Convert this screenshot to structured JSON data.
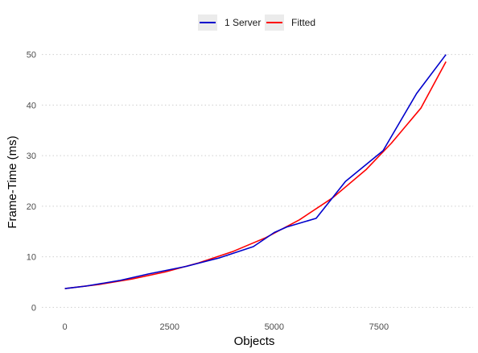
{
  "chart_data": {
    "type": "line",
    "title": "",
    "xlabel": "Objects",
    "ylabel": "Frame-Time (ms)",
    "xlim": [
      -550,
      9750
    ],
    "ylim": [
      -2.5,
      52.5
    ],
    "x_ticks": [
      0,
      2500,
      5000,
      7500
    ],
    "y_ticks": [
      0,
      10,
      20,
      30,
      40,
      50
    ],
    "grid": {
      "horizontal": true,
      "vertical": false,
      "style": "dotted"
    },
    "legend_position": "top",
    "series": [
      {
        "name": "1 Server",
        "color": "#0000CC",
        "points": [
          [
            0,
            3.7
          ],
          [
            500,
            4.2
          ],
          [
            1300,
            5.3
          ],
          [
            2000,
            6.6
          ],
          [
            2900,
            8.1
          ],
          [
            3700,
            9.8
          ],
          [
            4500,
            12.0
          ],
          [
            5000,
            14.8
          ],
          [
            5300,
            15.9
          ],
          [
            6000,
            17.6
          ],
          [
            6700,
            24.9
          ],
          [
            7600,
            31.0
          ],
          [
            8400,
            42.3
          ],
          [
            9100,
            50.0
          ]
        ]
      },
      {
        "name": "Fitted",
        "color": "#FF0000",
        "points": [
          [
            0,
            3.7
          ],
          [
            800,
            4.5
          ],
          [
            1600,
            5.6
          ],
          [
            2400,
            7.0
          ],
          [
            3200,
            8.8
          ],
          [
            4000,
            11.0
          ],
          [
            4800,
            13.8
          ],
          [
            5600,
            17.3
          ],
          [
            6400,
            21.7
          ],
          [
            7200,
            27.3
          ],
          [
            7800,
            32.5
          ],
          [
            8500,
            39.4
          ],
          [
            9100,
            48.6
          ]
        ]
      }
    ]
  }
}
